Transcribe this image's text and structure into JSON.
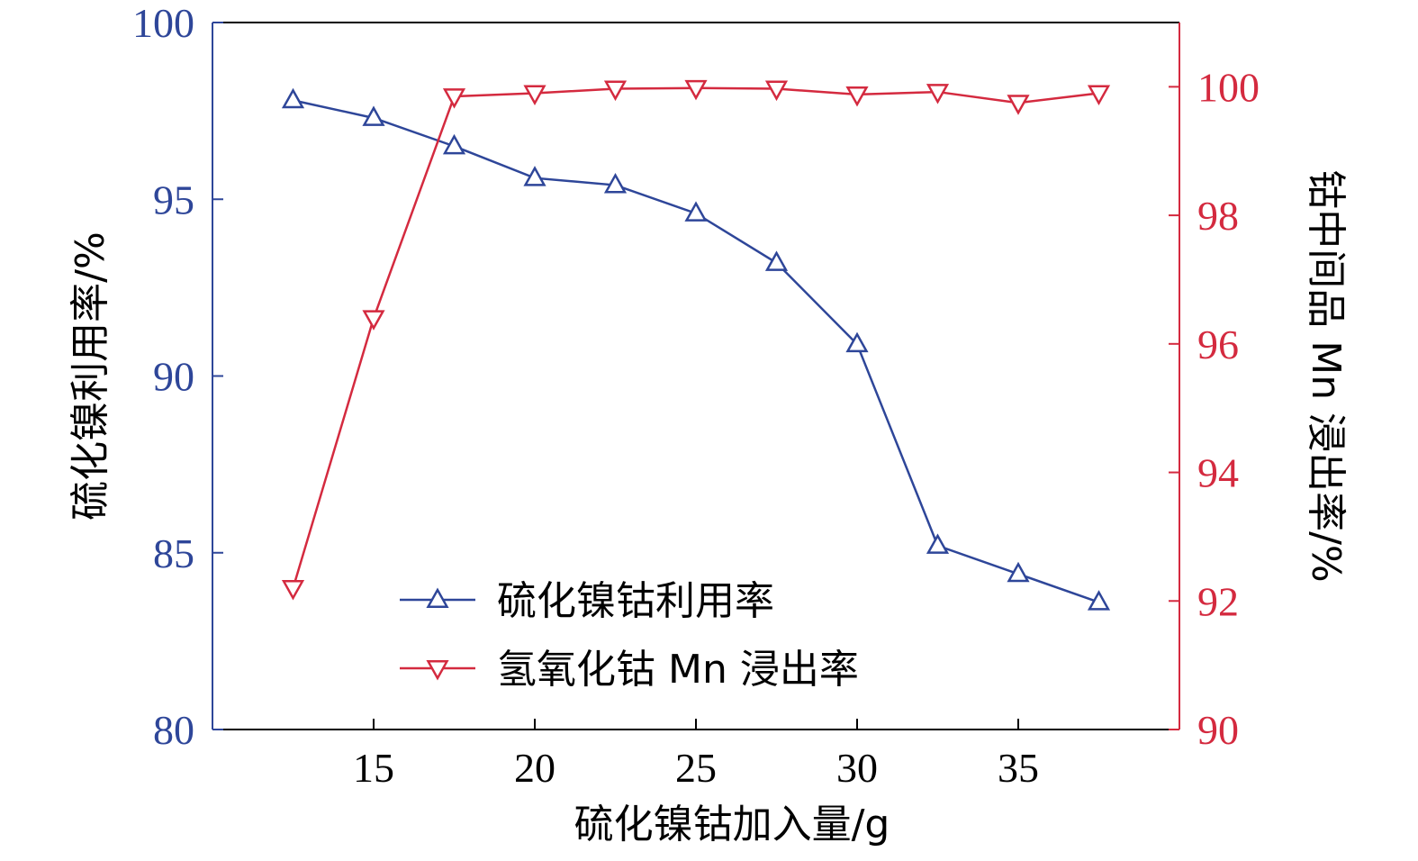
{
  "chart_data": {
    "type": "line",
    "title": "",
    "xlabel": "硫化镍钴加入量/g",
    "ylabel_left": "硫化镍利用率/%",
    "ylabel_right": "钴中间品 Mn 浸出率/%",
    "x": [
      12.5,
      15,
      17.5,
      20,
      22.5,
      25,
      27.5,
      30,
      32.5,
      35,
      37.5
    ],
    "xlim": [
      10,
      40
    ],
    "x_ticks": [
      "15",
      "20",
      "25",
      "30",
      "35"
    ],
    "x_tick_values": [
      15,
      20,
      25,
      30,
      35
    ],
    "ylim_left": [
      80,
      100
    ],
    "y_left_ticks": [
      "80",
      "85",
      "90",
      "95",
      "100"
    ],
    "y_left_tick_values": [
      80,
      85,
      90,
      95,
      100
    ],
    "ylim_right": [
      90,
      101
    ],
    "y_right_ticks": [
      "90",
      "92",
      "94",
      "96",
      "98",
      "100"
    ],
    "y_right_tick_values": [
      90,
      92,
      94,
      96,
      98,
      100
    ],
    "grid": false,
    "legend_position": "bottom-center",
    "series": [
      {
        "name": "硫化镍钴利用率",
        "axis": "left",
        "marker": "triangle-up",
        "color": "#2e4699",
        "values": [
          97.8,
          97.3,
          96.5,
          95.6,
          95.4,
          94.6,
          93.2,
          90.9,
          85.2,
          84.4,
          83.6
        ]
      },
      {
        "name": "氢氧化钴 Mn 浸出率",
        "axis": "right",
        "marker": "triangle-down",
        "color": "#d42a3f",
        "values": [
          92.2,
          96.4,
          99.85,
          99.9,
          99.97,
          99.98,
          99.97,
          99.88,
          99.92,
          99.75,
          99.9
        ]
      }
    ],
    "left_axis_color": "#2e4699",
    "right_axis_color": "#d42a3f",
    "frame_color": "#000000"
  }
}
